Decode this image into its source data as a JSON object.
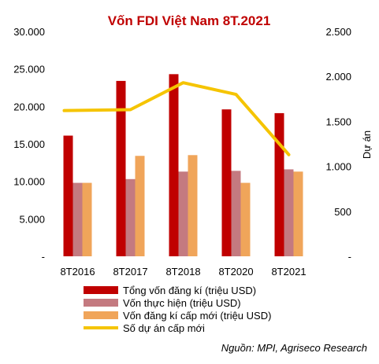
{
  "chart_data": {
    "type": "bar",
    "title": "Vốn FDI Việt Nam 8T.2021",
    "categories": [
      "8T2016",
      "8T2017",
      "8T2018",
      "8T2020",
      "8T2021"
    ],
    "series": [
      {
        "name": "Tổng vốn đăng kí (triệu USD)",
        "kind": "bar",
        "axis": "left",
        "color": "#c00000",
        "values": [
          16100,
          23400,
          24300,
          19600,
          19100
        ]
      },
      {
        "name": "Vốn thực hiện (triệu USD)",
        "kind": "bar",
        "axis": "left",
        "color": "#c47a80",
        "values": [
          9800,
          10300,
          11300,
          11400,
          11600
        ]
      },
      {
        "name": "Vốn đăng kí cấp mới (triệu USD)",
        "kind": "bar",
        "axis": "left",
        "color": "#f0a55a",
        "values": [
          9800,
          13400,
          13500,
          9800,
          11300
        ]
      },
      {
        "name": "Số dự án cấp mới",
        "kind": "line",
        "axis": "right",
        "color": "#f5c400",
        "values": [
          1620,
          1630,
          1930,
          1800,
          1130
        ]
      }
    ],
    "ylim": [
      0,
      30000
    ],
    "y_ticks": [
      "-",
      "5.000",
      "10.000",
      "15.000",
      "20.000",
      "25.000",
      "30.000"
    ],
    "y2lim": [
      0,
      2500
    ],
    "y2_ticks": [
      "-",
      "500",
      "1.000",
      "1.500",
      "2.000",
      "2.500"
    ],
    "y2label": "Dự án",
    "grid": false,
    "legend_position": "bottom-left",
    "source": "Nguồn: MPI, Agriseco Research"
  }
}
